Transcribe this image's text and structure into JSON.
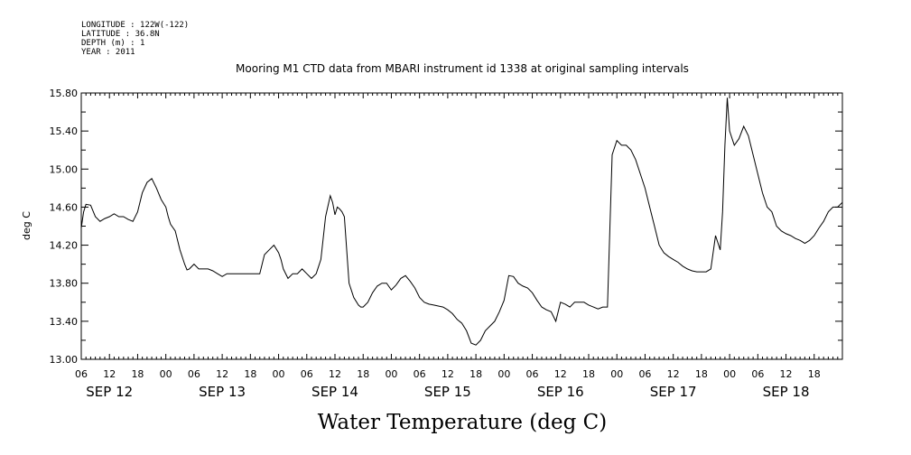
{
  "header": {
    "lines": [
      "LONGITUDE : 122W(-122)",
      "LATITUDE : 36.8N",
      "DEPTH (m) : 1",
      "YEAR : 2011"
    ]
  },
  "chart_data": {
    "type": "line",
    "title": "Mooring M1 CTD data from MBARI instrument id 1338 at original sampling intervals",
    "xlabel": "Water Temperature (deg C)",
    "ylabel": "deg C",
    "ylim": [
      13.0,
      15.8
    ],
    "yticks": [
      "13.00",
      "13.40",
      "13.80",
      "14.20",
      "14.60",
      "15.00",
      "15.40",
      "15.80"
    ],
    "xlim_hours": [
      0,
      162
    ],
    "hour_labels": [
      "06",
      "12",
      "18",
      "00",
      "06",
      "12",
      "18",
      "00",
      "06",
      "12",
      "18",
      "00",
      "06",
      "12",
      "18",
      "00",
      "06",
      "12",
      "18",
      "00",
      "06",
      "12",
      "18",
      "00",
      "06",
      "12",
      "18"
    ],
    "day_labels": [
      "SEP 12",
      "SEP 13",
      "SEP 14",
      "SEP 15",
      "SEP 16",
      "SEP 17",
      "SEP 18"
    ],
    "grid": false,
    "series": [
      {
        "x": [
          0,
          0.5,
          1,
          2,
          3,
          4,
          5,
          6,
          7,
          8,
          9,
          10,
          11,
          12,
          13,
          14,
          15,
          16,
          17,
          18,
          18.5,
          19,
          20,
          21,
          22,
          22.5,
          23,
          24,
          25,
          26,
          27,
          28,
          29,
          30,
          31,
          32,
          33,
          34,
          35,
          36,
          37,
          38,
          39,
          40,
          41,
          42,
          42.5,
          43,
          44,
          45,
          46,
          47,
          48,
          49,
          50,
          51,
          52,
          53,
          53.5,
          54,
          54.5,
          55,
          55.5,
          56,
          57,
          58,
          59,
          59.5,
          60,
          61,
          62,
          63,
          64,
          65,
          66,
          67,
          68,
          69,
          70,
          71,
          72,
          73,
          74,
          75,
          76,
          77,
          78,
          79,
          80,
          81,
          82,
          83,
          84,
          85,
          86,
          87,
          88,
          89,
          90,
          91,
          92,
          93,
          94,
          95,
          96,
          97,
          98,
          99,
          100,
          101,
          102,
          103,
          104,
          105,
          106,
          107,
          108,
          109,
          110,
          111,
          112,
          113,
          114,
          115,
          116,
          117,
          118,
          119,
          120,
          121,
          122,
          123,
          124,
          125,
          126,
          127,
          128,
          129,
          130,
          131,
          132,
          133,
          134,
          135,
          136,
          136.5,
          137,
          137.5,
          138,
          139,
          140,
          141,
          142,
          143,
          144,
          145,
          146,
          147,
          148,
          149,
          150,
          151,
          152,
          153,
          154,
          155,
          156,
          157,
          158,
          159,
          160,
          161,
          162
        ],
        "values": [
          14.38,
          14.55,
          14.63,
          14.62,
          14.5,
          14.45,
          14.48,
          14.5,
          14.53,
          14.5,
          14.5,
          14.47,
          14.45,
          14.55,
          14.75,
          14.86,
          14.9,
          14.8,
          14.68,
          14.6,
          14.5,
          14.42,
          14.35,
          14.15,
          14,
          13.94,
          13.95,
          14,
          13.95,
          13.95,
          13.95,
          13.93,
          13.9,
          13.87,
          13.9,
          13.9,
          13.9,
          13.9,
          13.9,
          13.9,
          13.9,
          13.9,
          14.1,
          14.15,
          14.2,
          14.12,
          14.05,
          13.95,
          13.85,
          13.9,
          13.9,
          13.95,
          13.9,
          13.85,
          13.9,
          14.05,
          14.5,
          14.72,
          14.65,
          14.52,
          14.6,
          14.58,
          14.55,
          14.5,
          13.8,
          13.65,
          13.57,
          13.55,
          13.55,
          13.6,
          13.7,
          13.77,
          13.8,
          13.8,
          13.73,
          13.78,
          13.85,
          13.88,
          13.82,
          13.75,
          13.65,
          13.6,
          13.58,
          13.57,
          13.56,
          13.55,
          13.52,
          13.48,
          13.42,
          13.38,
          13.3,
          13.17,
          13.15,
          13.2,
          13.3,
          13.35,
          13.4,
          13.5,
          13.62,
          13.88,
          13.87,
          13.8,
          13.77,
          13.75,
          13.7,
          13.62,
          13.55,
          13.52,
          13.5,
          13.4,
          13.6,
          13.58,
          13.55,
          13.6,
          13.6,
          13.6,
          13.57,
          13.55,
          13.53,
          13.55,
          13.55,
          15.15,
          15.3,
          15.25,
          15.25,
          15.2,
          15.1,
          14.95,
          14.8,
          14.6,
          14.4,
          14.2,
          14.12,
          14.08,
          14.05,
          14.02,
          13.98,
          13.95,
          13.93,
          13.92,
          13.92,
          13.92,
          13.95,
          14.3,
          14.15,
          14.55,
          15.25,
          15.75,
          15.4,
          15.25,
          15.32,
          15.45,
          15.35,
          15.15,
          14.95,
          14.75,
          14.6,
          14.55,
          14.4,
          14.35,
          14.32,
          14.3,
          14.27,
          14.25,
          14.22,
          14.25,
          14.3,
          14.38,
          14.45,
          14.55,
          14.6,
          14.6,
          14.65
        ]
      }
    ]
  }
}
